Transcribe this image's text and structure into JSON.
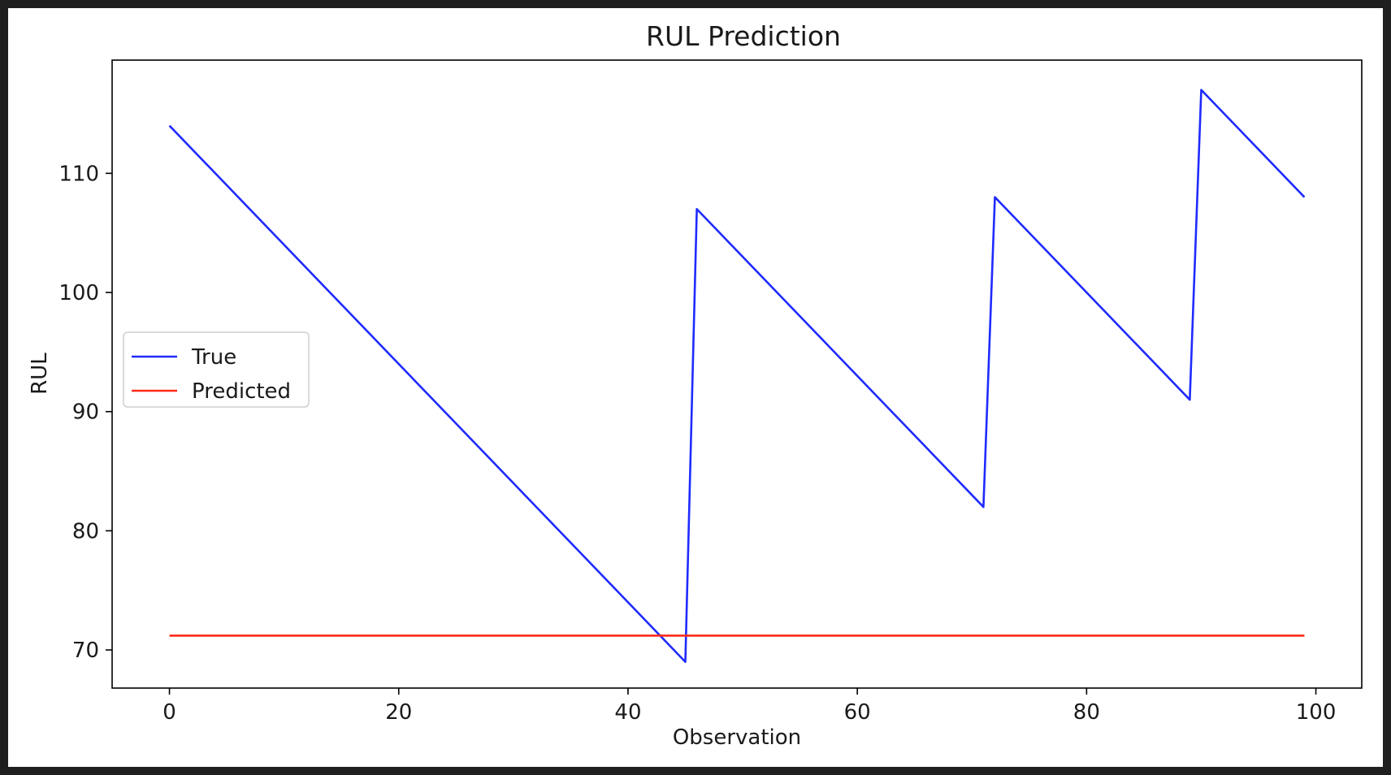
{
  "chart_data": {
    "type": "line",
    "title": "RUL Prediction",
    "xlabel": "Observation",
    "ylabel": "RUL",
    "xlim": [
      -5,
      104
    ],
    "ylim": [
      66.8,
      119.5
    ],
    "xticks": [
      0,
      20,
      40,
      60,
      80,
      100
    ],
    "yticks": [
      70,
      80,
      90,
      100,
      110
    ],
    "grid": false,
    "legend_position": "center-left",
    "series": [
      {
        "name": "True",
        "color": "#1f2bff",
        "points": [
          [
            0,
            114
          ],
          [
            45,
            69
          ],
          [
            46,
            107
          ],
          [
            71,
            82
          ],
          [
            72,
            108
          ],
          [
            89,
            91
          ],
          [
            90,
            117
          ],
          [
            99,
            108
          ]
        ]
      },
      {
        "name": "Predicted",
        "color": "#ff2a1a",
        "points": [
          [
            0,
            71.2
          ],
          [
            99,
            71.2
          ]
        ]
      }
    ]
  }
}
